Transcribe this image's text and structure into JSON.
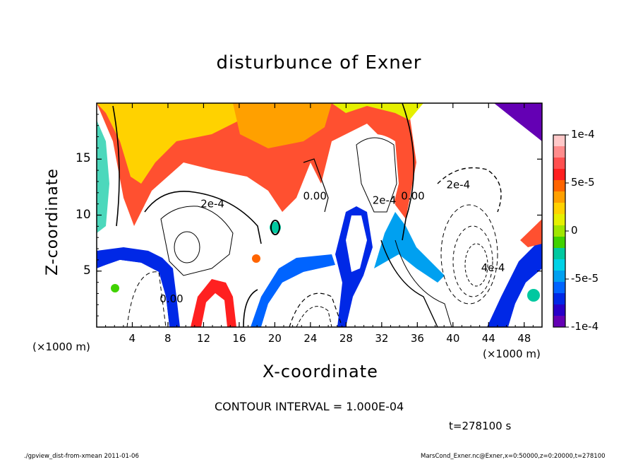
{
  "chart_data": {
    "type": "heatmap",
    "title": "disturbunce of Exner",
    "xlabel": "X-coordinate",
    "ylabel": "Z-coordinate",
    "x_unit": "(×1000 m)",
    "x_unit_right": "(×1000 m)",
    "xlim": [
      0,
      50
    ],
    "ylim": [
      0,
      20
    ],
    "x_ticks": [
      4,
      8,
      12,
      16,
      20,
      24,
      28,
      32,
      36,
      40,
      44,
      48
    ],
    "y_ticks": [
      5,
      10,
      15
    ],
    "colorbar": {
      "range": [
        -0.0001,
        0.0001
      ],
      "tick_labels": [
        "1e-4",
        "5e-5",
        "0",
        "-5e-5",
        "-1e-4"
      ],
      "tick_values": [
        0.0001,
        5e-05,
        0,
        -5e-05,
        -0.0001
      ],
      "colors": [
        "#ffc8c8",
        "#ff8c8c",
        "#ff5050",
        "#ff2020",
        "#ff6400",
        "#ffa000",
        "#ffd200",
        "#e6f000",
        "#a0e600",
        "#40d200",
        "#00c8a0",
        "#00d2e6",
        "#00a0f0",
        "#0064ff",
        "#0028e6",
        "#2800c8",
        "#6400b4"
      ]
    },
    "contour_interval": "CONTOUR INTERVAL = 1.000E-04",
    "contour_labels": [
      {
        "text": "2e-4",
        "x": 13,
        "z": 10.7
      },
      {
        "text": "0.00",
        "x": 24.5,
        "z": 11.4
      },
      {
        "text": "2e-4",
        "x": 32.3,
        "z": 11
      },
      {
        "text": "0.00",
        "x": 35.5,
        "z": 11.4
      },
      {
        "text": "2e-4",
        "x": 40.6,
        "z": 12.4
      },
      {
        "text": "0.00",
        "x": 8.4,
        "z": 2.2
      },
      {
        "text": "4e-4",
        "x": 44.5,
        "z": 5
      }
    ],
    "time": "t=278100 s"
  },
  "footer": {
    "left": "./gpview_dist-from-xmean   2011-01-06",
    "right": "MarsCond_Exner.nc@Exner,x=0:50000,z=0:20000,t=278100"
  }
}
